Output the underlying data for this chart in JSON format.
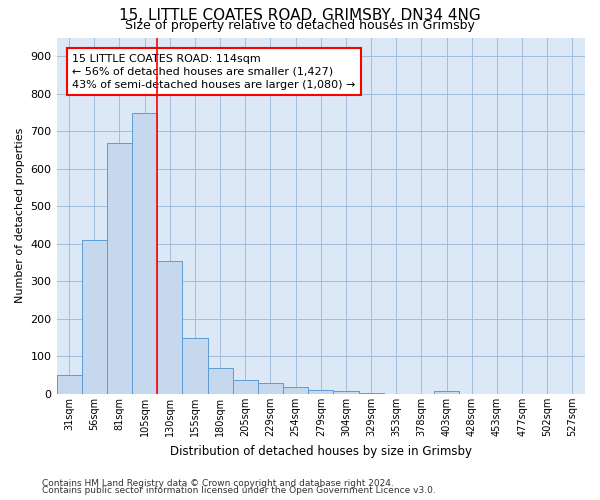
{
  "title1": "15, LITTLE COATES ROAD, GRIMSBY, DN34 4NG",
  "title2": "Size of property relative to detached houses in Grimsby",
  "xlabel": "Distribution of detached houses by size in Grimsby",
  "ylabel": "Number of detached properties",
  "categories": [
    "31sqm",
    "56sqm",
    "81sqm",
    "105sqm",
    "130sqm",
    "155sqm",
    "180sqm",
    "205sqm",
    "229sqm",
    "254sqm",
    "279sqm",
    "304sqm",
    "329sqm",
    "353sqm",
    "378sqm",
    "403sqm",
    "428sqm",
    "453sqm",
    "477sqm",
    "502sqm",
    "527sqm"
  ],
  "values": [
    50,
    410,
    670,
    750,
    355,
    150,
    70,
    37,
    30,
    18,
    10,
    7,
    3,
    0,
    0,
    8,
    0,
    0,
    0,
    0,
    0
  ],
  "bar_color": "#c5d8ee",
  "bar_edge_color": "#5b9bd5",
  "grid_color": "#9ab8d8",
  "background_color": "#dce8f5",
  "annotation_text": "15 LITTLE COATES ROAD: 114sqm\n← 56% of detached houses are smaller (1,427)\n43% of semi-detached houses are larger (1,080) →",
  "footer1": "Contains HM Land Registry data © Crown copyright and database right 2024.",
  "footer2": "Contains public sector information licensed under the Open Government Licence v3.0.",
  "ylim_max": 950,
  "red_line_index": 3.5
}
